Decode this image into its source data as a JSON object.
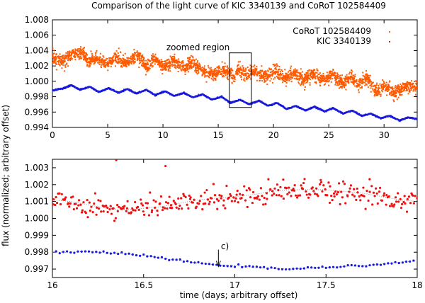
{
  "title": "Comparison of the light curve of KIC 3340139 and CoRoT 102584409",
  "ylabel": "flux (normalized; arbitrary offset)",
  "xlabel": "time (days; arbitrary offset)",
  "colors": {
    "corot": "#ff5a00",
    "kic": "#1a1adc",
    "corot_zoom": "#ee1111",
    "kic_zoom": "#1a1adc",
    "trend": "#888888",
    "axis": "#000000"
  },
  "chart_data": [
    {
      "type": "scatter",
      "title": "Comparison of the light curve of KIC 3340139 and CoRoT 102584409",
      "xlim": [
        0,
        33
      ],
      "ylim": [
        0.994,
        1.008
      ],
      "x_ticks": [
        0,
        5,
        10,
        15,
        20,
        25,
        30
      ],
      "x_tick_labels": [
        "0",
        "5",
        "10",
        "15",
        "20",
        "25",
        "30"
      ],
      "y_ticks": [
        0.994,
        0.996,
        0.998,
        1.0,
        1.002,
        1.004,
        1.006,
        1.008
      ],
      "y_tick_labels": [
        "0.994",
        "0.996",
        "0.998",
        "1.000",
        "1.002",
        "1.004",
        "1.006",
        "1.008"
      ],
      "legend": [
        "CoRoT 102584409",
        "KIC 3340139"
      ],
      "legend_position": "top-right",
      "series": [
        {
          "name": "CoRoT 102584409",
          "x": [
            0,
            1,
            1.5,
            2.7,
            3.3,
            4,
            5,
            5.8,
            6.5,
            7.8,
            8.5,
            9.3,
            10.1,
            11,
            12,
            12.5,
            13.5,
            14.5,
            15.5,
            16.4,
            16.9,
            17.5,
            18.3,
            19,
            20.3,
            21,
            21.8,
            22.7,
            23.6,
            24.5,
            25.4,
            26.3,
            27,
            27.7,
            28.5,
            29.3,
            30,
            30.9,
            32,
            33
          ],
          "y": [
            1.0032,
            1.0026,
            1.0033,
            1.0038,
            1.0025,
            1.003,
            1.0022,
            1.0032,
            1.0024,
            1.0033,
            1.0018,
            1.0028,
            1.0018,
            1.0027,
            1.0016,
            1.0025,
            1.0014,
            1.0009,
            1.0015,
            1.0007,
            1.0016,
            1.0008,
            1.0013,
            1.0006,
            1.0012,
            1.0005,
            1.0011,
            1.0002,
            1.001,
            1.0001,
            1.0008,
            0.9997,
            1.0006,
            0.9995,
            1.0005,
            0.9986,
            0.9993,
            0.9985,
            0.9994,
            0.9991
          ]
        },
        {
          "name": "KIC 3340139",
          "x": [
            0,
            1,
            1.7,
            2.5,
            3.4,
            4.2,
            5.1,
            6,
            6.8,
            7.6,
            8.5,
            9.3,
            10.2,
            11,
            11.9,
            12.7,
            13.6,
            14.4,
            15.3,
            16.1,
            17,
            17.8,
            18.7,
            19.5,
            20.3,
            21.2,
            22,
            22.9,
            23.7,
            24.6,
            25.4,
            26.3,
            27.1,
            28,
            28.8,
            29.7,
            30.5,
            31.4,
            32.2,
            33
          ],
          "y": [
            0.9988,
            0.9991,
            0.9995,
            0.9989,
            0.9993,
            0.9986,
            0.9991,
            0.9985,
            0.999,
            0.9984,
            0.9989,
            0.9982,
            0.9987,
            0.9981,
            0.9985,
            0.9979,
            0.9983,
            0.9976,
            0.998,
            0.9972,
            0.9976,
            0.997,
            0.9975,
            0.9968,
            0.9972,
            0.9964,
            0.9968,
            0.9962,
            0.9967,
            0.9961,
            0.9965,
            0.9958,
            0.9962,
            0.9955,
            0.9958,
            0.9952,
            0.9955,
            0.9949,
            0.9953,
            0.9951
          ]
        }
      ],
      "annotations": [
        {
          "text": "zoomed region",
          "x": 16.2,
          "y": 1.0044
        }
      ],
      "highlight_box": {
        "x": [
          16,
          18
        ],
        "y": [
          0.9966,
          1.0037
        ]
      }
    },
    {
      "type": "scatter",
      "xlim": [
        16,
        18
      ],
      "ylim": [
        0.9965,
        1.0035
      ],
      "xlabel": "time (days; arbitrary offset)",
      "x_ticks": [
        16,
        16.5,
        17,
        17.5,
        18
      ],
      "x_tick_labels": [
        "16",
        "16.5",
        "17",
        "17.5",
        "18"
      ],
      "y_ticks": [
        0.997,
        0.998,
        0.999,
        1.0,
        1.001,
        1.002,
        1.003
      ],
      "y_tick_labels": [
        "0.997",
        "0.998",
        "0.999",
        "1.000",
        "1.001",
        "1.002",
        "1.003"
      ],
      "series": [
        {
          "name": "CoRoT 102584409",
          "x": [
            16,
            16.1,
            16.2,
            16.3,
            16.4,
            16.5,
            16.6,
            16.7,
            16.8,
            16.9,
            17,
            17.1,
            17.2,
            17.3,
            17.4,
            17.5,
            17.6,
            17.7,
            17.8,
            17.9,
            18
          ],
          "y": [
            1.0011,
            1.001,
            1.0008,
            1.0006,
            1.0005,
            1.0006,
            1.0007,
            1.0009,
            1.0011,
            1.0012,
            1.0013,
            1.0014,
            1.0016,
            1.0017,
            1.0017,
            1.0017,
            1.0016,
            1.0015,
            1.0013,
            1.0011,
            1.001
          ]
        },
        {
          "name": "KIC 3340139",
          "x": [
            16,
            16.1,
            16.2,
            16.3,
            16.4,
            16.5,
            16.6,
            16.7,
            16.8,
            16.9,
            17,
            17.1,
            17.2,
            17.3,
            17.4,
            17.5,
            17.6,
            17.7,
            17.8,
            17.9,
            18
          ],
          "y": [
            0.998,
            0.998,
            0.99805,
            0.99795,
            0.9979,
            0.9978,
            0.99765,
            0.9975,
            0.99735,
            0.99725,
            0.9972,
            0.9971,
            0.99705,
            0.997,
            0.99705,
            0.9971,
            0.99715,
            0.9972,
            0.9973,
            0.9974,
            0.9975
          ]
        }
      ],
      "outliers": [
        {
          "x": 16.35,
          "y": 1.00345
        },
        {
          "x": 16.62,
          "y": 1.0031
        }
      ],
      "annotations": [
        {
          "text": "c)",
          "x": 16.92,
          "y": 0.99835
        }
      ],
      "arrow": {
        "x": 16.91,
        "y_from": 0.99815,
        "y_to": 0.99715
      }
    }
  ]
}
